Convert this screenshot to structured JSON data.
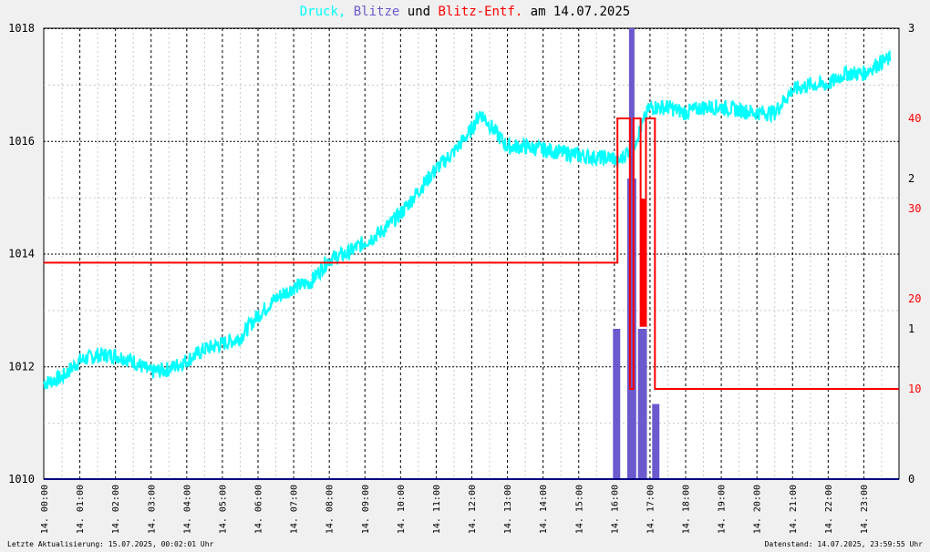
{
  "title": {
    "parts": [
      {
        "text": "Druck,",
        "color": "#00ffff"
      },
      {
        "text": "Blitze",
        "color": "#6a5acd"
      },
      {
        "text": "und",
        "color": "#000000"
      },
      {
        "text": "Blitz-Entf.",
        "color": "#ff0000"
      },
      {
        "text": "am 14.07.2025",
        "color": "#000000"
      }
    ]
  },
  "footer": {
    "left": "Letzte Aktualisierung: 15.07.2025, 00:02:01 Uhr",
    "right": "Datenstand: 14.07.2025, 23:59:55 Uhr"
  },
  "colors": {
    "pressure": "#00ffff",
    "strikes": "#6a5acd",
    "distance": "#ff0000",
    "grid": "#000000",
    "background": "#ffffff"
  },
  "chart_data": {
    "type": "line",
    "x_tick_labels": [
      "14. 00:00",
      "14. 01:00",
      "14. 02:00",
      "14. 03:00",
      "14. 04:00",
      "14. 05:00",
      "14. 06:00",
      "14. 07:00",
      "14. 08:00",
      "14. 09:00",
      "14. 10:00",
      "14. 11:00",
      "14. 12:00",
      "14. 13:00",
      "14. 14:00",
      "14. 15:00",
      "14. 16:00",
      "14. 17:00",
      "14. 18:00",
      "14. 19:00",
      "14. 20:00",
      "14. 21:00",
      "14. 22:00",
      "14. 23:00"
    ],
    "x_range_hours": [
      0,
      24
    ],
    "y_left": {
      "ticks": [
        "1010",
        "1012",
        "1014",
        "1016",
        "1018"
      ],
      "range": [
        1010,
        1018
      ]
    },
    "y_right_strikes": {
      "ticks": [
        "0",
        "1",
        "2",
        "3"
      ],
      "range": [
        0,
        3
      ]
    },
    "y_right_distance": {
      "ticks": [
        "10",
        "20",
        "30",
        "40"
      ],
      "range": [
        0,
        50
      ]
    },
    "series": [
      {
        "name": "Druck",
        "axis": "left",
        "x": [
          0,
          0.5,
          1,
          1.5,
          2,
          2.5,
          3,
          3.5,
          4,
          4.5,
          5,
          5.5,
          6,
          6.5,
          7,
          7.5,
          8,
          8.5,
          9,
          9.5,
          10,
          10.5,
          11,
          11.5,
          12,
          12.25,
          12.5,
          13,
          13.5,
          14,
          14.5,
          15,
          15.5,
          16,
          16.1,
          16.5,
          16.6,
          16.8,
          17,
          17.5,
          18,
          18.5,
          19,
          19.5,
          20,
          20.5,
          21,
          21.5,
          22,
          22.5,
          23,
          23.5,
          23.75
        ],
        "y": [
          1011.7,
          1011.8,
          1012.1,
          1012.2,
          1012.2,
          1012.1,
          1011.9,
          1011.95,
          1012.1,
          1012.3,
          1012.4,
          1012.5,
          1012.9,
          1013.2,
          1013.4,
          1013.5,
          1013.9,
          1014.0,
          1014.2,
          1014.4,
          1014.7,
          1015.1,
          1015.5,
          1015.8,
          1016.2,
          1016.5,
          1016.3,
          1015.9,
          1015.9,
          1015.85,
          1015.8,
          1015.75,
          1015.7,
          1015.7,
          1015.6,
          1015.9,
          1016.0,
          1016.3,
          1016.6,
          1016.6,
          1016.5,
          1016.6,
          1016.6,
          1016.55,
          1016.5,
          1016.5,
          1016.9,
          1017.0,
          1017.0,
          1017.2,
          1017.2,
          1017.4,
          1017.45
        ]
      },
      {
        "name": "Blitze",
        "axis": "right_strikes",
        "x": [
          16.05,
          16.1,
          16.45,
          16.5,
          16.55,
          16.75,
          16.8,
          16.85,
          17.15,
          17.2
        ],
        "y": [
          1,
          1,
          2,
          3,
          2,
          1,
          1,
          1,
          0.5,
          0.5
        ]
      },
      {
        "name": "Blitz-Entf.",
        "axis": "right_distance",
        "x": [
          0,
          16.1,
          16.1,
          16.45,
          16.45,
          16.55,
          16.55,
          16.75,
          16.75,
          16.8,
          16.8,
          16.85,
          16.85,
          16.9,
          16.9,
          17.15,
          17.15,
          24
        ],
        "y": [
          24,
          24,
          40,
          40,
          10,
          10,
          40,
          40,
          17,
          17,
          31,
          31,
          17,
          17,
          40,
          40,
          10,
          10
        ]
      }
    ]
  }
}
